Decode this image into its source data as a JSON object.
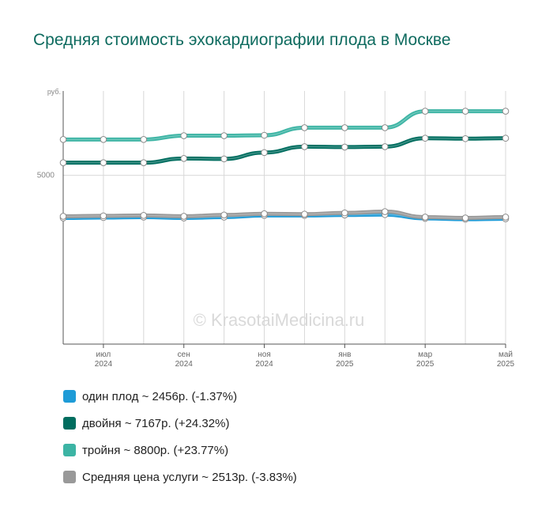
{
  "chart_data": {
    "type": "line",
    "title": "Средняя стоимость эхокардиографии плода в Москве",
    "ylabel": "руб.",
    "ylim": [
      3000,
      6000
    ],
    "yticks": [
      {
        "value": 5000,
        "label": "5000"
      }
    ],
    "x": [
      "2024-06",
      "2024-07",
      "2024-08",
      "2024-09",
      "2024-10",
      "2024-11",
      "2024-12",
      "2025-01",
      "2025-02",
      "2025-03",
      "2025-04",
      "2025-05"
    ],
    "xticks": [
      {
        "index": 1,
        "month": "июл",
        "year": "2024"
      },
      {
        "index": 3,
        "month": "сен",
        "year": "2024"
      },
      {
        "index": 5,
        "month": "ноя",
        "year": "2024"
      },
      {
        "index": 7,
        "month": "янв",
        "year": "2025"
      },
      {
        "index": 9,
        "month": "мар",
        "year": "2025"
      },
      {
        "index": 11,
        "month": "май",
        "year": "2025"
      }
    ],
    "grid": true,
    "watermark": "© KrasotaiMedicina.ru",
    "series": [
      {
        "key": "one",
        "color": "#1e9bd7",
        "legend": "один плод ~ 2456р. (-1.37%)",
        "values": [
          4495,
          4500,
          4505,
          4495,
          4505,
          4525,
          4525,
          4530,
          4535,
          4490,
          4480,
          4485
        ]
      },
      {
        "key": "twins",
        "color": "#006d5f",
        "legend": "двойня ~ 7167р. (+24.32%)",
        "values": [
          5150,
          5150,
          5150,
          5200,
          5195,
          5270,
          5340,
          5335,
          5340,
          5440,
          5435,
          5440
        ]
      },
      {
        "key": "triplets",
        "color": "#3cb4a4",
        "legend": "тройня ~ 8800р. (+23.77%)",
        "values": [
          5425,
          5425,
          5425,
          5470,
          5470,
          5475,
          5565,
          5565,
          5565,
          5760,
          5760,
          5760
        ]
      },
      {
        "key": "average",
        "color": "#999999",
        "legend": "Средняя цена услуги ~ 2513р. (-3.83%)",
        "values": [
          4515,
          4520,
          4525,
          4515,
          4530,
          4545,
          4540,
          4555,
          4570,
          4505,
          4495,
          4505
        ]
      }
    ]
  }
}
